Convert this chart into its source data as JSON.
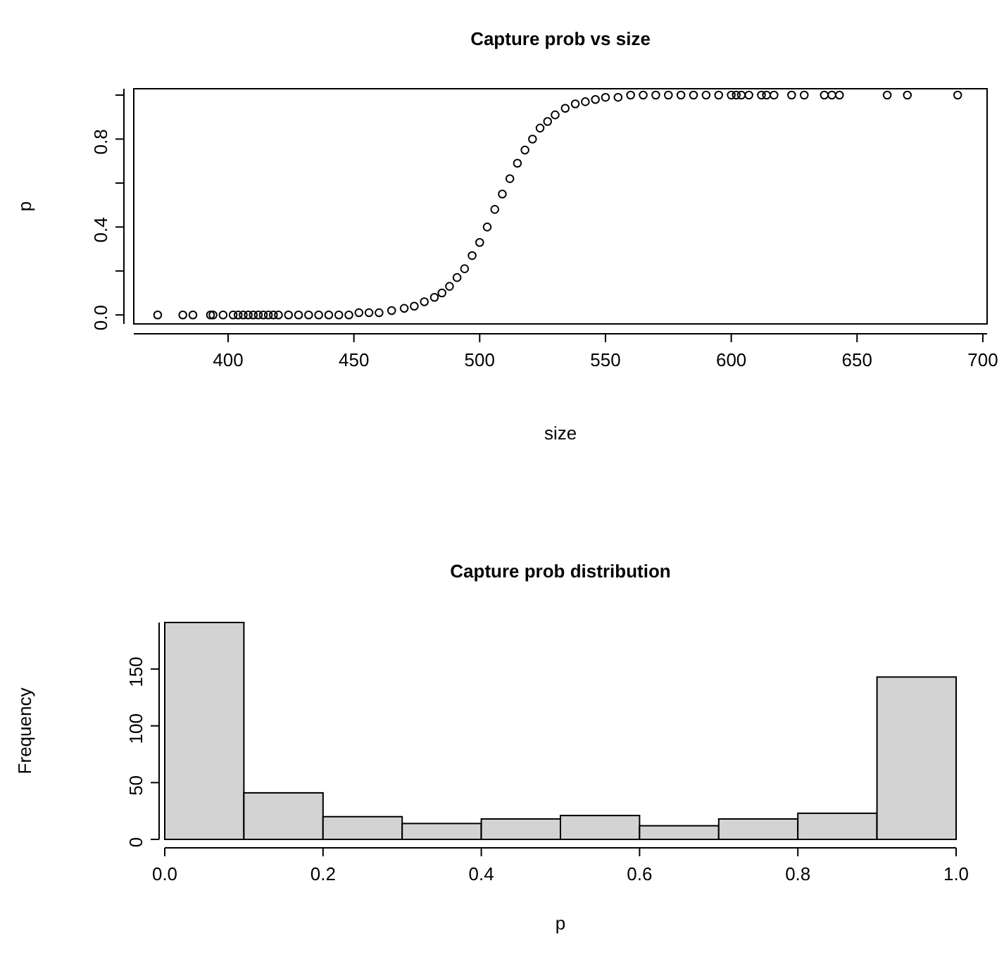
{
  "chart_data": [
    {
      "type": "scatter",
      "title": "Capture prob vs size",
      "xlabel": "size",
      "ylabel": "p",
      "marker": "circle",
      "xlim": [
        362.5,
        701.7
      ],
      "ylim": [
        -0.041,
        1.029
      ],
      "xticks": [
        400,
        450,
        500,
        550,
        600,
        650,
        700
      ],
      "yticks": [
        {
          "value": 0,
          "label": "0.0"
        },
        {
          "value": 0.2,
          "label": null
        },
        {
          "value": 0.4,
          "label": "0.4"
        },
        {
          "value": 0.6,
          "label": null
        },
        {
          "value": 0.8,
          "label": "0.8"
        },
        {
          "value": 1,
          "label": null
        }
      ],
      "x": [
        372,
        382,
        386,
        393,
        394,
        398,
        402,
        404,
        406,
        408,
        410,
        412,
        414,
        416,
        418,
        420,
        424,
        428,
        432,
        436,
        440,
        444,
        448,
        452,
        456,
        460,
        465,
        470,
        474,
        478,
        482,
        485,
        488,
        491,
        494,
        497,
        500,
        503,
        506,
        509,
        512,
        515,
        518,
        521,
        524,
        527,
        530,
        534,
        538,
        542,
        546,
        550,
        555,
        560,
        565,
        570,
        575,
        580,
        585,
        590,
        595,
        600,
        602,
        604,
        607,
        612,
        614,
        617,
        624,
        629,
        637,
        640,
        643,
        662,
        670,
        690
      ],
      "values": [
        0,
        0,
        0,
        0,
        0,
        0,
        0,
        0,
        0,
        0,
        0,
        0,
        0,
        0,
        0,
        0,
        0,
        0,
        0,
        0,
        0,
        0,
        0,
        0.01,
        0.01,
        0.01,
        0.02,
        0.03,
        0.04,
        0.06,
        0.08,
        0.1,
        0.13,
        0.17,
        0.21,
        0.27,
        0.33,
        0.4,
        0.48,
        0.55,
        0.62,
        0.69,
        0.75,
        0.8,
        0.85,
        0.88,
        0.91,
        0.94,
        0.96,
        0.97,
        0.98,
        0.99,
        0.99,
        1,
        1,
        1,
        1,
        1,
        1,
        1,
        1,
        1,
        1,
        1,
        1,
        1,
        1,
        1,
        1,
        1,
        1,
        1,
        1,
        1,
        1,
        1
      ]
    },
    {
      "type": "histogram",
      "title": "Capture prob distribution",
      "xlabel": "p",
      "ylabel": "Frequency",
      "color": "#d3d3d3",
      "xlim": [
        0,
        1
      ],
      "ylim": [
        0,
        191
      ],
      "xticks": [
        {
          "value": 0,
          "label": "0.0"
        },
        {
          "value": 0.2,
          "label": "0.2"
        },
        {
          "value": 0.4,
          "label": "0.4"
        },
        {
          "value": 0.6,
          "label": "0.6"
        },
        {
          "value": 0.8,
          "label": "0.8"
        },
        {
          "value": 1,
          "label": "1.0"
        }
      ],
      "yticks": [
        0,
        50,
        100,
        150
      ],
      "bins": [
        0,
        0.1,
        0.2,
        0.3,
        0.4,
        0.5,
        0.6,
        0.7,
        0.8,
        0.9,
        1
      ],
      "values": [
        191,
        41,
        20,
        14,
        18,
        21,
        12,
        18,
        23,
        143
      ]
    }
  ]
}
